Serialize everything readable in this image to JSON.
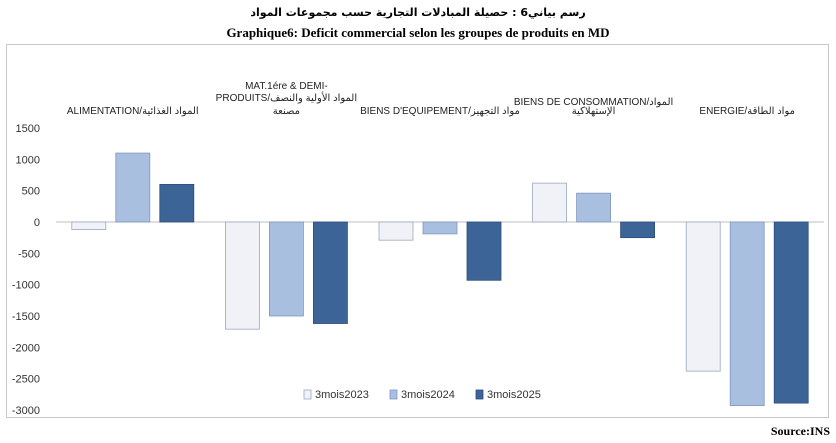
{
  "title_ar": "رسم بياني6 : حصيلة المبادلات التجارية حسب مجموعات المواد",
  "title_fr": "Graphique6: Deficit commercial selon les groupes de produits en MD",
  "source": "Source:INS",
  "colors": {
    "s2023": "#f0f2f8",
    "s2024": "#a9bfe0",
    "s2025": "#3d6497",
    "frame": "#c7c7c7",
    "grid": "#d9d9d9"
  },
  "chart_data": {
    "type": "bar",
    "title": "Graphique6: Deficit commercial selon les groupes de produits en MD",
    "categories": [
      [
        "ALIMENTATION/المواد الغذائية"
      ],
      [
        "MAT.1ére & DEMI-",
        "PRODUITS/المواد الأولية والنصف",
        "مصنعة"
      ],
      [
        "BIENS D'EQUIPEMENT/مواد التجهيز"
      ],
      [
        "BIENS DE CONSOMMATION/المواد",
        "الإستهلاكية"
      ],
      [
        "ENERGIE/مواد الطاقة"
      ]
    ],
    "series": [
      {
        "name": "3mois2023",
        "values": [
          -120,
          -1710,
          -290,
          620,
          -2380
        ]
      },
      {
        "name": "3mois2024",
        "values": [
          1100,
          -1500,
          -190,
          460,
          -2930
        ]
      },
      {
        "name": "3mois2025",
        "values": [
          600,
          -1620,
          -930,
          -250,
          -2890
        ]
      }
    ],
    "yticks": [
      1500,
      1000,
      500,
      0,
      -500,
      -1000,
      -1500,
      -2000,
      -2500,
      -3000
    ],
    "ylim": [
      -3000,
      1500
    ],
    "legend_position": "bottom-center",
    "grid": false
  }
}
